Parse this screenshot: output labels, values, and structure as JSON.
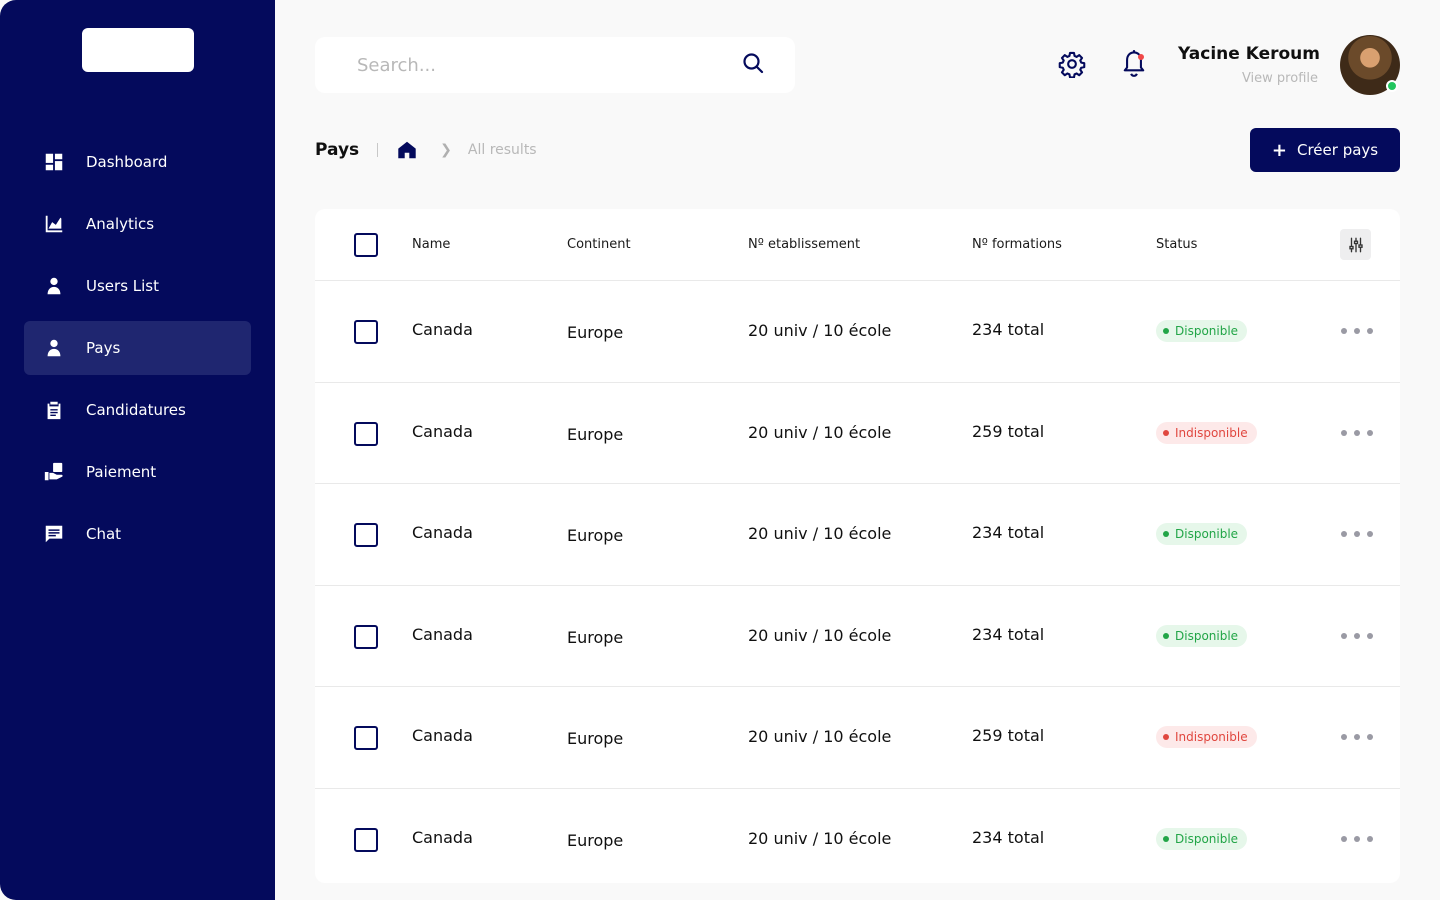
{
  "colors": {
    "sidebar_bg": "#040a5c",
    "active_item_bg": "#1f2670",
    "accent": "#040a5c",
    "available": "#22a547",
    "unavailable": "#e0473f"
  },
  "sidebar": {
    "items": [
      {
        "label": "Dashboard",
        "icon": "dashboard-icon",
        "active": false
      },
      {
        "label": "Analytics",
        "icon": "analytics-icon",
        "active": false
      },
      {
        "label": "Users List",
        "icon": "user-icon",
        "active": false
      },
      {
        "label": "Pays",
        "icon": "user-icon",
        "active": true
      },
      {
        "label": "Candidatures",
        "icon": "clipboard-icon",
        "active": false
      },
      {
        "label": "Paiement",
        "icon": "payment-icon",
        "active": false
      },
      {
        "label": "Chat",
        "icon": "chat-icon",
        "active": false
      }
    ]
  },
  "search": {
    "placeholder": "Search...",
    "value": ""
  },
  "header": {
    "icons": [
      "gear-icon",
      "bell-icon"
    ],
    "user_name": "Yacine Keroum",
    "profile_link": "View profile"
  },
  "breadcrumb": {
    "title": "Pays",
    "home_icon": "home-icon",
    "current": "All results"
  },
  "actions": {
    "create_label": "Créer pays"
  },
  "table": {
    "columns": [
      "Name",
      "Continent",
      "Nº etablissement",
      "Nº formations",
      "Status"
    ],
    "rows": [
      {
        "name": "Canada",
        "continent": "Europe",
        "etablissements": "20 univ / 10 école",
        "formations": "234 total",
        "status": "Disponible",
        "available": true
      },
      {
        "name": "Canada",
        "continent": "Europe",
        "etablissements": "20 univ / 10 école",
        "formations": "259 total",
        "status": "Indisponible",
        "available": false
      },
      {
        "name": "Canada",
        "continent": "Europe",
        "etablissements": "20 univ / 10 école",
        "formations": "234 total",
        "status": "Disponible",
        "available": true
      },
      {
        "name": "Canada",
        "continent": "Europe",
        "etablissements": "20 univ / 10 école",
        "formations": "234 total",
        "status": "Disponible",
        "available": true
      },
      {
        "name": "Canada",
        "continent": "Europe",
        "etablissements": "20 univ / 10 école",
        "formations": "259 total",
        "status": "Indisponible",
        "available": false
      },
      {
        "name": "Canada",
        "continent": "Europe",
        "etablissements": "20 univ / 10 école",
        "formations": "234 total",
        "status": "Disponible",
        "available": true
      }
    ]
  }
}
